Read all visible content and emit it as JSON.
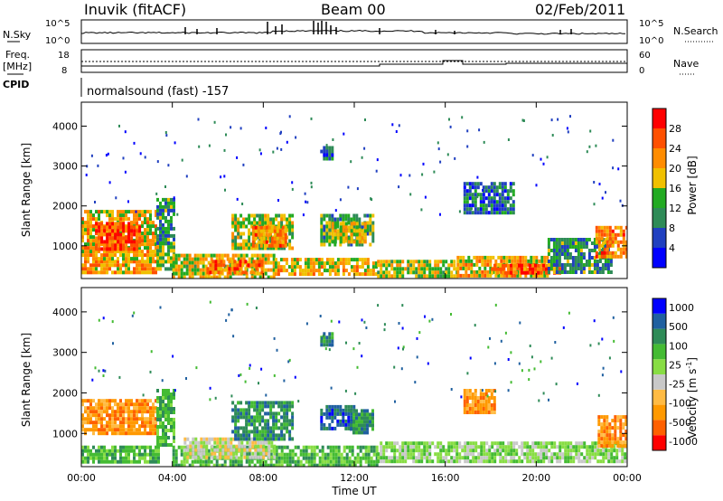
{
  "header": {
    "station": "Inuvik (fitACF)",
    "beam": "Beam 00",
    "date": "02/Feb/2011"
  },
  "panels": {
    "nsky_label": "N.Sky",
    "nsearch_label": "N.Search",
    "freq_label": "Freq.",
    "freq_unit": "[MHz]",
    "nave_label": "Nave",
    "cpid_label": "CPID",
    "cpid_text": "normalsound (fast) -157",
    "noise_ticks": [
      "10^5",
      "10^0"
    ],
    "freq_ticks": [
      "18",
      "8"
    ],
    "nave_ticks": [
      "60",
      "0"
    ]
  },
  "colors": {
    "power": [
      "#0000ff",
      "#2040c0",
      "#2e8b57",
      "#22aa22",
      "#f0c000",
      "#ff8c00",
      "#ff5000",
      "#ff0000"
    ],
    "velocity": [
      "#ff0000",
      "#ff6000",
      "#ff9900",
      "#ffbb44",
      "#c8c8c8",
      "#88dd44",
      "#44bb33",
      "#2e8b57",
      "#2060a0",
      "#0000ff"
    ]
  },
  "chart_data": [
    {
      "type": "heatmap",
      "name": "power",
      "xlabel": "",
      "ylabel": "Slant Range [km]",
      "x_ticks": [
        "00:00",
        "04:00",
        "08:00",
        "12:00",
        "16:00",
        "20:00",
        "00:00"
      ],
      "xlim_hours": [
        0,
        24
      ],
      "y_ticks": [
        1000,
        2000,
        3000,
        4000
      ],
      "ylim": [
        180,
        4600
      ],
      "colorbar_label": "Power [dB]",
      "colorbar_ticks": [
        4,
        8,
        12,
        16,
        20,
        24,
        28
      ],
      "colorbar_range": [
        0,
        32
      ],
      "regions": [
        {
          "t": [
            0.0,
            3.4
          ],
          "r": [
            350,
            650
          ],
          "v": 22
        },
        {
          "t": [
            0.0,
            3.3
          ],
          "r": [
            700,
            1900
          ],
          "v": 20
        },
        {
          "t": [
            0.6,
            2.6
          ],
          "r": [
            900,
            1600
          ],
          "v": 28
        },
        {
          "t": [
            3.3,
            4.1
          ],
          "r": [
            450,
            1100
          ],
          "v": 14
        },
        {
          "t": [
            3.3,
            4.1
          ],
          "r": [
            1100,
            2200
          ],
          "v": 10
        },
        {
          "t": [
            4.0,
            8.5
          ],
          "r": [
            250,
            800
          ],
          "v": 18
        },
        {
          "t": [
            5.5,
            8.0
          ],
          "r": [
            300,
            650
          ],
          "v": 26
        },
        {
          "t": [
            6.6,
            9.3
          ],
          "r": [
            900,
            1800
          ],
          "v": 16
        },
        {
          "t": [
            7.5,
            9.0
          ],
          "r": [
            1000,
            1500
          ],
          "v": 24
        },
        {
          "t": [
            8.5,
            13.0
          ],
          "r": [
            250,
            700
          ],
          "v": 20
        },
        {
          "t": [
            10.5,
            12.8
          ],
          "r": [
            1000,
            1800
          ],
          "v": 12
        },
        {
          "t": [
            11.0,
            12.5
          ],
          "r": [
            1100,
            1600
          ],
          "v": 18
        },
        {
          "t": [
            13.0,
            16.5
          ],
          "r": [
            250,
            650
          ],
          "v": 17
        },
        {
          "t": [
            16.5,
            20.5
          ],
          "r": [
            250,
            750
          ],
          "v": 20
        },
        {
          "t": [
            18.0,
            21.0
          ],
          "r": [
            300,
            550
          ],
          "v": 27
        },
        {
          "t": [
            20.5,
            23.3
          ],
          "r": [
            300,
            1200
          ],
          "v": 10
        },
        {
          "t": [
            22.6,
            24.0
          ],
          "r": [
            700,
            1500
          ],
          "v": 24
        },
        {
          "t": [
            16.8,
            19.0
          ],
          "r": [
            1800,
            2600
          ],
          "v": 7
        },
        {
          "t": [
            10.5,
            11.0
          ],
          "r": [
            3200,
            3500
          ],
          "v": 6
        }
      ]
    },
    {
      "type": "heatmap",
      "name": "velocity",
      "xlabel": "Time UT",
      "ylabel": "Slant Range [km]",
      "x_ticks": [
        "00:00",
        "04:00",
        "08:00",
        "12:00",
        "16:00",
        "20:00",
        "00:00"
      ],
      "xlim_hours": [
        0,
        24
      ],
      "y_ticks": [
        1000,
        2000,
        3000,
        4000
      ],
      "ylim": [
        180,
        4600
      ],
      "colorbar_label": "Velocity [m s",
      "colorbar_exponent": "-1",
      "colorbar_ticks": [
        "1000",
        "500",
        "100",
        "25",
        "-25",
        "-100",
        "-500",
        "-1000"
      ],
      "regions": [
        {
          "t": [
            0.0,
            3.3
          ],
          "r": [
            1000,
            1850
          ],
          "v": 2
        },
        {
          "t": [
            0.0,
            3.4
          ],
          "r": [
            300,
            700
          ],
          "v": 6
        },
        {
          "t": [
            3.3,
            4.1
          ],
          "r": [
            700,
            2100
          ],
          "v": 6
        },
        {
          "t": [
            4.0,
            13.0
          ],
          "r": [
            250,
            700
          ],
          "v": 6
        },
        {
          "t": [
            4.5,
            8.5
          ],
          "r": [
            450,
            900
          ],
          "v": 4
        },
        {
          "t": [
            6.6,
            9.3
          ],
          "r": [
            900,
            1800
          ],
          "v": 7
        },
        {
          "t": [
            10.5,
            12.0
          ],
          "r": [
            1100,
            1700
          ],
          "v": 8
        },
        {
          "t": [
            11.8,
            12.8
          ],
          "r": [
            1000,
            1600
          ],
          "v": 7
        },
        {
          "t": [
            13.0,
            24.0
          ],
          "r": [
            300,
            800
          ],
          "v": 5
        },
        {
          "t": [
            16.8,
            18.2
          ],
          "r": [
            1500,
            2100
          ],
          "v": 2
        },
        {
          "t": [
            22.7,
            24.0
          ],
          "r": [
            650,
            1450
          ],
          "v": 2
        },
        {
          "t": [
            10.5,
            11.0
          ],
          "r": [
            3200,
            3500
          ],
          "v": 7
        }
      ]
    }
  ]
}
